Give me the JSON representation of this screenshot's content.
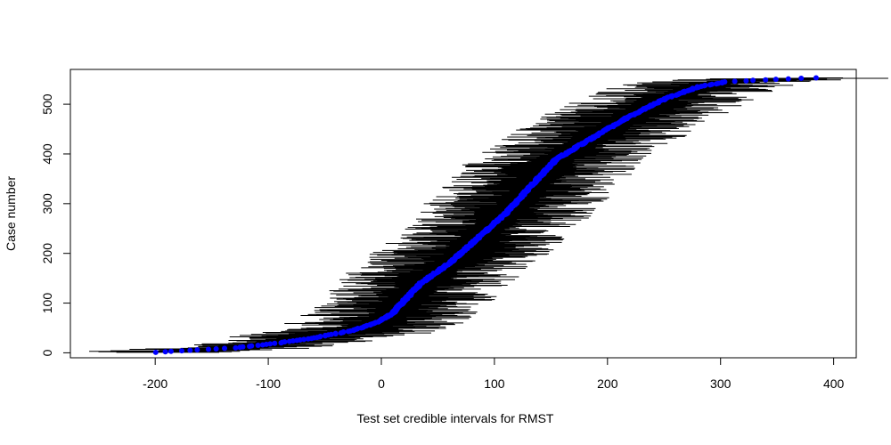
{
  "chart_data": {
    "type": "scatter",
    "title": "",
    "xlabel": "Test set credible intervals for RMST",
    "ylabel": "Case number",
    "xlim": [
      -275,
      420
    ],
    "ylim": [
      -10,
      570
    ],
    "x_ticks": [
      -200,
      -100,
      0,
      100,
      200,
      300,
      400
    ],
    "y_ticks": [
      0,
      100,
      200,
      300,
      400,
      500
    ],
    "n_cases": 553,
    "point_color": "#0000ff",
    "interval_color": "#000000",
    "grid": false,
    "legend": "none",
    "point_curve": [
      {
        "case": 1,
        "x": -200
      },
      {
        "case": 5,
        "x": -170
      },
      {
        "case": 10,
        "x": -130
      },
      {
        "case": 20,
        "x": -90
      },
      {
        "case": 30,
        "x": -60
      },
      {
        "case": 45,
        "x": -25
      },
      {
        "case": 60,
        "x": -5
      },
      {
        "case": 80,
        "x": 10
      },
      {
        "case": 100,
        "x": 18
      },
      {
        "case": 140,
        "x": 35
      },
      {
        "case": 180,
        "x": 60
      },
      {
        "case": 230,
        "x": 85
      },
      {
        "case": 280,
        "x": 110
      },
      {
        "case": 330,
        "x": 130
      },
      {
        "case": 390,
        "x": 155
      },
      {
        "case": 430,
        "x": 185
      },
      {
        "case": 470,
        "x": 215
      },
      {
        "case": 510,
        "x": 250
      },
      {
        "case": 535,
        "x": 280
      },
      {
        "case": 545,
        "x": 305
      },
      {
        "case": 548,
        "x": 330
      },
      {
        "case": 551,
        "x": 360
      },
      {
        "case": 553,
        "x": 385
      }
    ],
    "interval_half_width_range": [
      15,
      80
    ]
  }
}
